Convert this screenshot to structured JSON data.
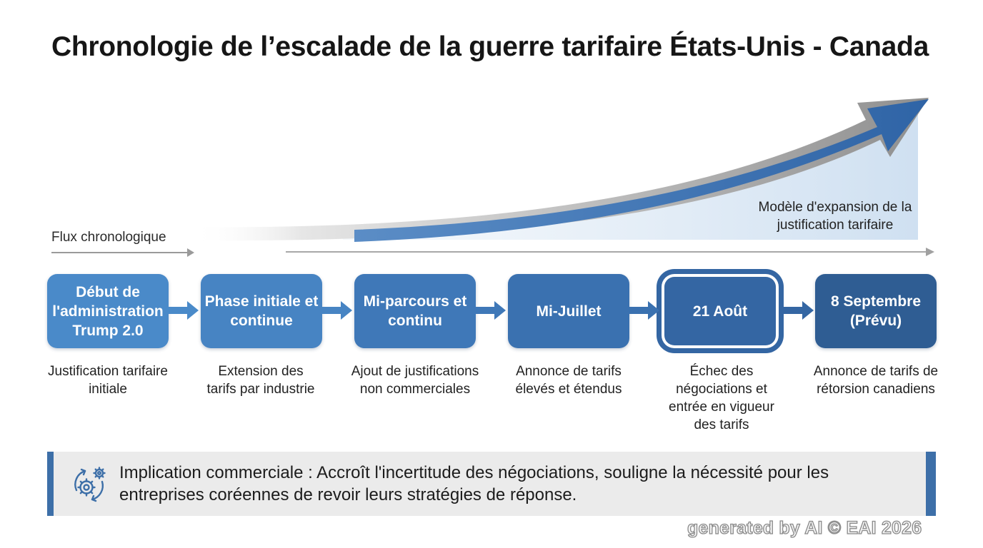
{
  "title": "Chronologie de l’escalade de la guerre tarifaire États-Unis - Canada",
  "flow_label": "Flux chronologique",
  "expansion_label": "Modèle d'expansion de la justification tarifaire",
  "colors": {
    "box_light": "#4a8ac9",
    "box_mid": "#3f78b8",
    "box_dark": "#2f5d93",
    "accent": "#3d6fa8",
    "trend_gray": "#9c9c9c",
    "trend_blue": "#3d72b3"
  },
  "steps": [
    {
      "label": "Début de l'administration Trump 2.0",
      "description": "Justification tarifaire initiale"
    },
    {
      "label": "Phase initiale et continue",
      "description": "Extension des tarifs par industrie"
    },
    {
      "label": "Mi-parcours et continu",
      "description": "Ajout de justifications non commerciales"
    },
    {
      "label": "Mi-Juillet",
      "description": "Annonce de tarifs élevés et étendus"
    },
    {
      "label": "21 Août",
      "description": "Échec des négociations et entrée en vigueur des tarifs"
    },
    {
      "label": "8 Septembre (Prévu)",
      "description": "Annonce de tarifs de rétorsion canadiens"
    }
  ],
  "implication": {
    "icon": "gear-cycle-icon",
    "text": "Implication commerciale : Accroît l'incertitude des négociations, souligne la nécessité pour les entreprises coréennes de revoir leurs stratégies de réponse."
  },
  "watermark": "generated by AI © EAI 2026"
}
